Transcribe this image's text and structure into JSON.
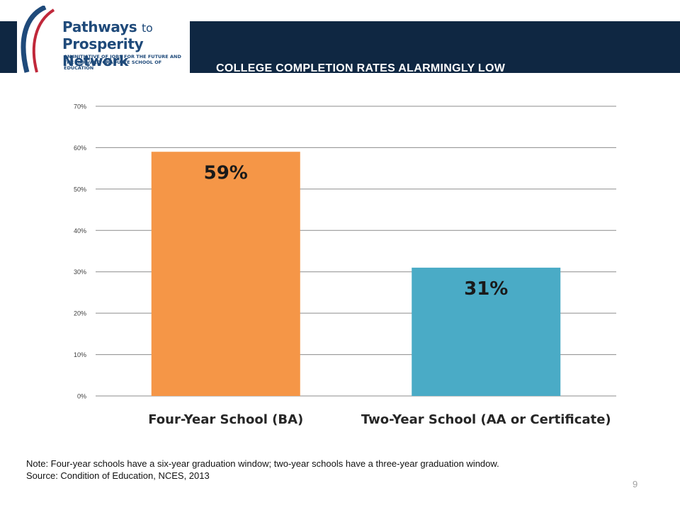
{
  "header": {
    "title": "COLLEGE COMPLETION RATES ALARMINGLY LOW",
    "background_color": "#0f2742"
  },
  "logo": {
    "line1": "Pathways",
    "line1_suffix": "to",
    "line2": "Prosperity Network",
    "tagline": "AN INITIATIVE OF JOBS FOR THE FUTURE AND THE HARVARD GRADUATE SCHOOL OF EDUCATION",
    "colors": {
      "navy": "#1f4a7a",
      "red": "#c0283a"
    }
  },
  "chart_data": {
    "type": "bar",
    "categories": [
      "Four-Year School (BA)",
      "Two-Year School (AA or Certificate)"
    ],
    "values": [
      59,
      31
    ],
    "data_labels": [
      "59%",
      "31%"
    ],
    "colors": [
      "#f59647",
      "#4aabc6"
    ],
    "ylim": [
      0,
      70
    ],
    "yticks": [
      0,
      10,
      20,
      30,
      40,
      50,
      60,
      70
    ],
    "ytick_labels": [
      "0%",
      "10%",
      "20%",
      "30%",
      "40%",
      "50%",
      "60%",
      "70%"
    ],
    "grid": true,
    "title": "",
    "xlabel": "",
    "ylabel": ""
  },
  "footer": {
    "note": "Note: Four-year schools have a six-year graduation window; two-year schools have a three-year graduation window.",
    "source": "Source: Condition of Education, NCES, 2013",
    "page_number": "9"
  }
}
